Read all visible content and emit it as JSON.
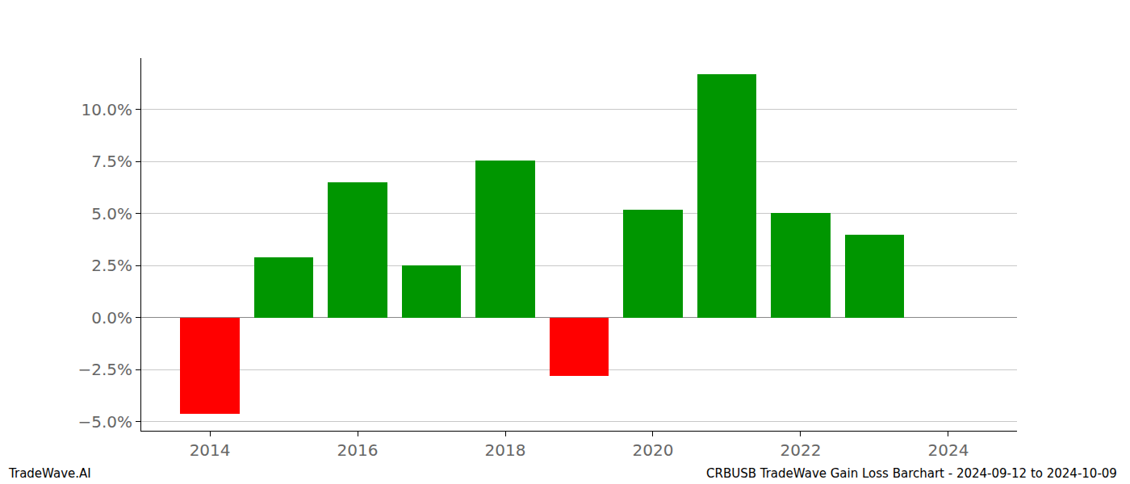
{
  "chart_data": {
    "type": "bar",
    "title": "CRBUSB TradeWave Gain Loss Barchart - 2024-09-12 to 2024-10-09",
    "annotations": [
      "TradeWave.AI"
    ],
    "x": [
      2014,
      2015,
      2016,
      2017,
      2018,
      2019,
      2020,
      2021,
      2022,
      2023
    ],
    "values": [
      -4.6,
      2.9,
      6.5,
      2.5,
      7.55,
      -2.8,
      5.2,
      11.7,
      5.05,
      4.0
    ],
    "colors": [
      "#ff0000",
      "#009600",
      "#009600",
      "#009600",
      "#009600",
      "#ff0000",
      "#009600",
      "#009600",
      "#009600",
      "#009600"
    ],
    "xlim": [
      2013.07,
      2024.93
    ],
    "xticks": [
      2014,
      2016,
      2018,
      2020,
      2022,
      2024
    ],
    "ylim": [
      -5.43,
      12.48
    ],
    "yticks": [
      {
        "value": -5,
        "label": "−5.0%"
      },
      {
        "value": -2.5,
        "label": "−2.5%"
      },
      {
        "value": 0,
        "label": "0.0%"
      },
      {
        "value": 2.5,
        "label": "2.5%"
      },
      {
        "value": 5,
        "label": "5.0%"
      },
      {
        "value": 7.5,
        "label": "7.5%"
      },
      {
        "value": 10,
        "label": "10.0%"
      }
    ],
    "grid": true
  }
}
